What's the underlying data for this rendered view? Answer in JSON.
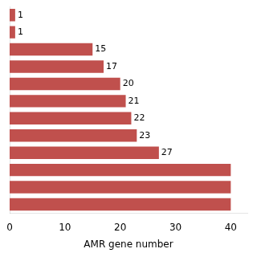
{
  "chart_data": {
    "type": "bar",
    "orientation": "horizontal",
    "xlabel": "AMR gene number",
    "categories": [
      null,
      null,
      null,
      null,
      null,
      null,
      null,
      null,
      null,
      null,
      null,
      null
    ],
    "values": [
      1,
      1,
      15,
      17,
      20,
      21,
      22,
      23,
      27,
      40,
      40,
      40
    ],
    "value_labels": [
      "1",
      "1",
      "15",
      "17",
      "20",
      "21",
      "22",
      "23",
      "27",
      null,
      null,
      null
    ],
    "data_labels": true,
    "color": "#c0504d",
    "xlim": [
      0,
      43
    ],
    "xticks": [
      0,
      10,
      20,
      30,
      40
    ],
    "grid": false,
    "tick_labels": "x"
  }
}
